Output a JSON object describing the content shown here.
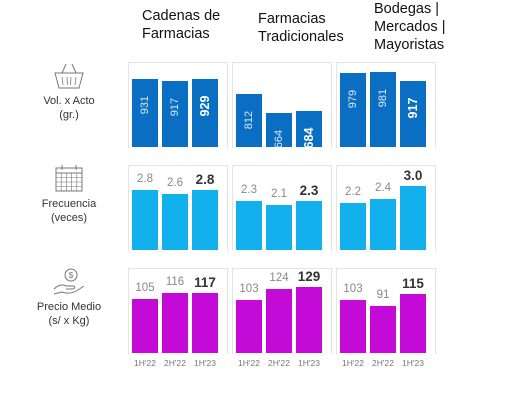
{
  "chart_data": {
    "type": "bar",
    "columns": [
      {
        "title": [
          "Cadenas de",
          "Farmacias"
        ]
      },
      {
        "title": [
          "Farmacias",
          "Tradicionales"
        ]
      },
      {
        "title": [
          "Bodegas |",
          "Mercados |",
          "Mayoristas"
        ]
      }
    ],
    "categories": [
      "1H'22",
      "2H'22",
      "1H'23"
    ],
    "rows": [
      {
        "label": [
          "Vol. x Acto",
          "(gr.)"
        ],
        "icon": "basket-icon",
        "color": "#0a6fc2",
        "labels_rotated": true,
        "values": [
          [
            931,
            917,
            929
          ],
          [
            812,
            664,
            684
          ],
          [
            979,
            981,
            917
          ]
        ],
        "display": [
          [
            "931",
            "917",
            "929"
          ],
          [
            "812",
            "664",
            "684"
          ],
          [
            "979",
            "981",
            "917"
          ]
        ]
      },
      {
        "label": [
          "Frecuencia",
          "(veces)"
        ],
        "icon": "calendar-icon",
        "color": "#12b1ee",
        "labels_rotated": false,
        "values": [
          [
            2.8,
            2.6,
            2.8
          ],
          [
            2.3,
            2.1,
            2.3
          ],
          [
            2.2,
            2.4,
            3.0
          ]
        ],
        "display": [
          [
            "2.8",
            "2.6",
            "2.8"
          ],
          [
            "2.3",
            "2.1",
            "2.3"
          ],
          [
            "2.2",
            "2.4",
            "3.0"
          ]
        ]
      },
      {
        "label": [
          "Precio Medio",
          "(s/ x Kg)"
        ],
        "icon": "coins-hand-icon",
        "color": "#c40ad6",
        "labels_rotated": false,
        "values": [
          [
            105,
            116,
            117
          ],
          [
            103,
            124,
            129
          ],
          [
            103,
            91,
            115
          ]
        ],
        "display": [
          [
            "105",
            "116",
            "117"
          ],
          [
            "103",
            "124",
            "129"
          ],
          [
            "103",
            "91",
            "115"
          ]
        ]
      }
    ]
  }
}
